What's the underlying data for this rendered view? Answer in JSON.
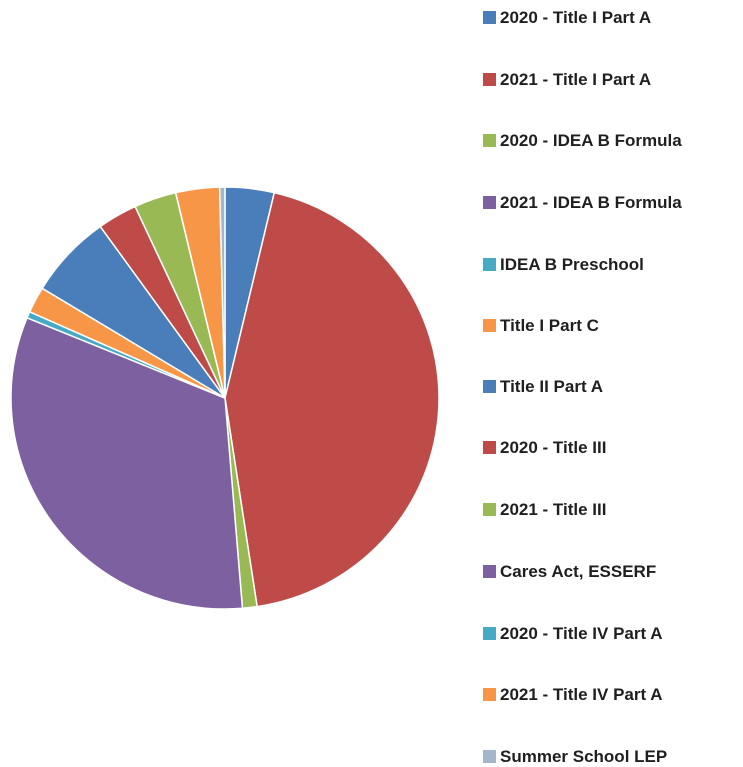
{
  "chart_data": {
    "type": "pie",
    "categories": [
      "2020 - Title I Part A",
      "2021 - Title I Part A",
      "2020 - IDEA B Formula",
      "2021 - IDEA B Formula",
      "IDEA B Preschool",
      "Title I Part C",
      "Title II Part A",
      "2020 - Title III",
      "2021 - Title III",
      "Cares Act, ESSERF",
      "2020 - Title IV Part A",
      "2021 - Title IV Part A",
      "Summer School LEP"
    ],
    "values": [
      3.7,
      43.9,
      1.1,
      32.5,
      0.5,
      2,
      6.4,
      3,
      3.2,
      0,
      0,
      3.3,
      0.4
    ],
    "colors": [
      "#4a7ebb",
      "#be4b48",
      "#98b954",
      "#7d60a0",
      "#46aac5",
      "#f79646",
      "#4a7ebb",
      "#be4b48",
      "#98b954",
      "#7d60a0",
      "#46aac5",
      "#f79646",
      "#a5b6ca"
    ],
    "legend": "right"
  }
}
